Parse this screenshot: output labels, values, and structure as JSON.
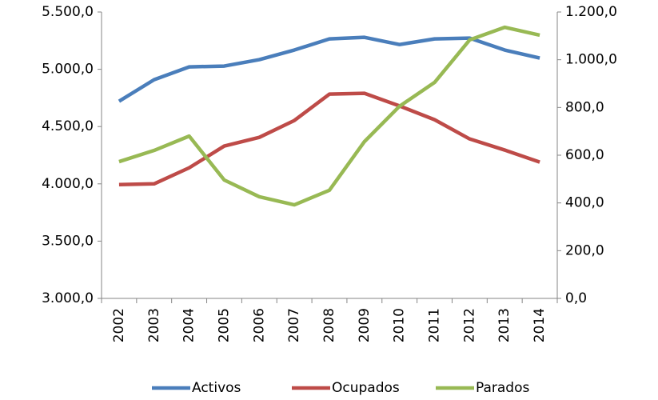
{
  "chart_data": {
    "type": "line",
    "categories": [
      "2002",
      "2003",
      "2004",
      "2005",
      "2006",
      "2007",
      "2008",
      "2009",
      "2010",
      "2011",
      "2012",
      "2013",
      "2014"
    ],
    "series": [
      {
        "name": "Activos",
        "color": "#4a7ebb",
        "values": [
          4721,
          4909,
          5021,
          5028,
          5084,
          5168,
          5265,
          5279,
          5216,
          5265,
          5272,
          5168,
          5098
        ]
      },
      {
        "name": "Ocupados",
        "color": "#be4b48",
        "values": [
          3993,
          4000,
          4140,
          4330,
          4406,
          4553,
          4783,
          4790,
          4680,
          4560,
          4392,
          4295,
          4190
        ]
      },
      {
        "name": "Parados",
        "color": "#98b954",
        "axis": "y2",
        "values": [
          573,
          620,
          680,
          496,
          426,
          392,
          453,
          657,
          805,
          905,
          1083,
          1136,
          1103
        ]
      }
    ],
    "ylim": [
      3000,
      5500
    ],
    "yticks": [
      {
        "value": 3000,
        "label": "3.000,0"
      },
      {
        "value": 3500,
        "label": "3.500,0"
      },
      {
        "value": 4000,
        "label": "4.000,0"
      },
      {
        "value": 4500,
        "label": "4.500,0"
      },
      {
        "value": 5000,
        "label": "5.000,0"
      },
      {
        "value": 5500,
        "label": "5.500,0"
      }
    ],
    "y2lim": [
      0,
      1200
    ],
    "y2ticks": [
      {
        "value": 0,
        "label": "0,0"
      },
      {
        "value": 200,
        "label": "200,0"
      },
      {
        "value": 400,
        "label": "400,0"
      },
      {
        "value": 600,
        "label": "600,0"
      },
      {
        "value": 800,
        "label": "800,0"
      },
      {
        "value": 1000,
        "label": "1.000,0"
      },
      {
        "value": 1200,
        "label": "1.200,0"
      }
    ],
    "legend": "bottom"
  }
}
